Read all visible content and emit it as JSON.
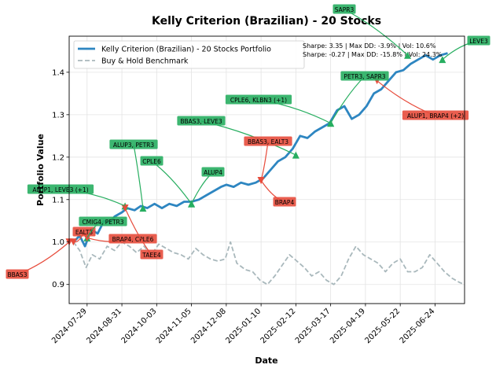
{
  "chart_data": {
    "type": "line",
    "title": "Kelly Criterion (Brazilian) - 20 Stocks",
    "xlabel": "Date",
    "ylabel": "Portfolio Value",
    "xlim": [
      "2024-07-12",
      "2025-07-22"
    ],
    "ylim": [
      0.855,
      1.485
    ],
    "yticks": [
      0.9,
      1.0,
      1.1,
      1.2,
      1.3,
      1.4
    ],
    "ytick_labels": [
      "0.9",
      "1.0",
      "1.1",
      "1.2",
      "1.3",
      "1.4"
    ],
    "xticks": [
      "2024-07-29",
      "2024-08-31",
      "2024-10-03",
      "2024-11-05",
      "2024-12-08",
      "2025-01-10",
      "2025-02-12",
      "2025-03-17",
      "2025-04-19",
      "2025-05-22",
      "2025-06-24"
    ],
    "grid": true,
    "legend_position": "upper left",
    "series": [
      {
        "name": "Kelly Criterion (Brazilian) - 20 Stocks Portfolio",
        "color": "#2e86c1",
        "style": "solid",
        "points": [
          [
            "2024-07-16",
            1.0
          ],
          [
            "2024-07-22",
            1.015
          ],
          [
            "2024-07-27",
            0.99
          ],
          [
            "2024-08-02",
            1.03
          ],
          [
            "2024-08-08",
            1.02
          ],
          [
            "2024-08-14",
            1.05
          ],
          [
            "2024-08-19",
            1.045
          ],
          [
            "2024-08-24",
            1.06
          ],
          [
            "2024-08-31",
            1.07
          ],
          [
            "2024-09-05",
            1.08
          ],
          [
            "2024-09-12",
            1.075
          ],
          [
            "2024-09-18",
            1.085
          ],
          [
            "2024-09-24",
            1.08
          ],
          [
            "2024-10-01",
            1.09
          ],
          [
            "2024-10-08",
            1.08
          ],
          [
            "2024-10-15",
            1.09
          ],
          [
            "2024-10-22",
            1.085
          ],
          [
            "2024-10-29",
            1.095
          ],
          [
            "2024-11-05",
            1.095
          ],
          [
            "2024-11-12",
            1.1
          ],
          [
            "2024-11-19",
            1.11
          ],
          [
            "2024-11-26",
            1.12
          ],
          [
            "2024-12-03",
            1.13
          ],
          [
            "2024-12-08",
            1.135
          ],
          [
            "2024-12-15",
            1.13
          ],
          [
            "2024-12-22",
            1.14
          ],
          [
            "2024-12-29",
            1.135
          ],
          [
            "2025-01-05",
            1.14
          ],
          [
            "2025-01-12",
            1.15
          ],
          [
            "2025-01-19",
            1.17
          ],
          [
            "2025-01-26",
            1.19
          ],
          [
            "2025-02-02",
            1.2
          ],
          [
            "2025-02-09",
            1.22
          ],
          [
            "2025-02-16",
            1.25
          ],
          [
            "2025-02-23",
            1.245
          ],
          [
            "2025-03-02",
            1.26
          ],
          [
            "2025-03-09",
            1.27
          ],
          [
            "2025-03-16",
            1.28
          ],
          [
            "2025-03-23",
            1.31
          ],
          [
            "2025-03-30",
            1.32
          ],
          [
            "2025-04-06",
            1.29
          ],
          [
            "2025-04-13",
            1.3
          ],
          [
            "2025-04-20",
            1.32
          ],
          [
            "2025-04-27",
            1.35
          ],
          [
            "2025-05-04",
            1.36
          ],
          [
            "2025-05-11",
            1.38
          ],
          [
            "2025-05-18",
            1.4
          ],
          [
            "2025-05-25",
            1.405
          ],
          [
            "2025-06-01",
            1.42
          ],
          [
            "2025-06-08",
            1.43
          ],
          [
            "2025-06-15",
            1.44
          ],
          [
            "2025-06-22",
            1.43
          ],
          [
            "2025-06-29",
            1.44
          ],
          [
            "2025-07-06",
            1.445
          ]
        ]
      },
      {
        "name": "Buy & Hold Benchmark",
        "color": "#a9b8bc",
        "style": "dashed",
        "points": [
          [
            "2024-07-16",
            1.0
          ],
          [
            "2024-07-22",
            0.98
          ],
          [
            "2024-07-28",
            0.94
          ],
          [
            "2024-08-03",
            0.97
          ],
          [
            "2024-08-10",
            0.96
          ],
          [
            "2024-08-17",
            0.99
          ],
          [
            "2024-08-24",
            0.98
          ],
          [
            "2024-08-31",
            1.0
          ],
          [
            "2024-09-07",
            0.99
          ],
          [
            "2024-09-14",
            0.975
          ],
          [
            "2024-09-21",
            0.99
          ],
          [
            "2024-09-28",
            0.97
          ],
          [
            "2024-10-05",
            0.995
          ],
          [
            "2024-10-12",
            0.985
          ],
          [
            "2024-10-19",
            0.975
          ],
          [
            "2024-10-26",
            0.97
          ],
          [
            "2024-11-02",
            0.96
          ],
          [
            "2024-11-09",
            0.985
          ],
          [
            "2024-11-16",
            0.97
          ],
          [
            "2024-11-23",
            0.96
          ],
          [
            "2024-11-30",
            0.955
          ],
          [
            "2024-12-07",
            0.96
          ],
          [
            "2024-12-12",
            1.0
          ],
          [
            "2024-12-18",
            0.95
          ],
          [
            "2024-12-26",
            0.935
          ],
          [
            "2025-01-02",
            0.93
          ],
          [
            "2025-01-09",
            0.91
          ],
          [
            "2025-01-16",
            0.9
          ],
          [
            "2025-01-23",
            0.92
          ],
          [
            "2025-01-30",
            0.945
          ],
          [
            "2025-02-06",
            0.97
          ],
          [
            "2025-02-13",
            0.955
          ],
          [
            "2025-02-20",
            0.94
          ],
          [
            "2025-02-27",
            0.92
          ],
          [
            "2025-03-06",
            0.93
          ],
          [
            "2025-03-13",
            0.91
          ],
          [
            "2025-03-20",
            0.9
          ],
          [
            "2025-03-27",
            0.92
          ],
          [
            "2025-04-03",
            0.96
          ],
          [
            "2025-04-10",
            0.99
          ],
          [
            "2025-04-17",
            0.97
          ],
          [
            "2025-04-24",
            0.96
          ],
          [
            "2025-05-01",
            0.95
          ],
          [
            "2025-05-08",
            0.93
          ],
          [
            "2025-05-15",
            0.95
          ],
          [
            "2025-05-22",
            0.96
          ],
          [
            "2025-05-29",
            0.93
          ],
          [
            "2025-06-05",
            0.93
          ],
          [
            "2025-06-12",
            0.94
          ],
          [
            "2025-06-19",
            0.97
          ],
          [
            "2025-06-26",
            0.95
          ],
          [
            "2025-07-03",
            0.93
          ],
          [
            "2025-07-10",
            0.915
          ],
          [
            "2025-07-17",
            0.905
          ],
          [
            "2025-07-22",
            0.9
          ]
        ]
      }
    ],
    "stats_text": {
      "line1": "Sharpe: 3.35 | Max DD: -3.9% | Vol: 10.6%",
      "line2": "Sharpe: -0.27 | Max DD: -15.8% | Vol: 24.3%"
    },
    "annotations": [
      {
        "label": "BBAS3",
        "kind": "sell",
        "date": "2024-07-12",
        "value": 1.0
      },
      {
        "label": "EALT3",
        "kind": "sell",
        "date": "2024-07-16",
        "value": 1.0
      },
      {
        "label": "ALUP1, LEVE3 (+1)",
        "kind": "buy",
        "date": "2024-09-03",
        "value": 1.085
      },
      {
        "label": "CMIG4, PETR3",
        "kind": "buy",
        "date": "2024-07-29",
        "value": 1.01
      },
      {
        "label": "BRAP4, CPLE6",
        "kind": "sell",
        "date": "2024-07-29",
        "value": 1.01
      },
      {
        "label": "TAEE4",
        "kind": "sell",
        "date": "2024-09-03",
        "value": 1.08
      },
      {
        "label": "ALUP3, PETR3",
        "kind": "buy",
        "date": "2024-09-20",
        "value": 1.08
      },
      {
        "label": "CPLE6",
        "kind": "buy",
        "date": "2024-11-05",
        "value": 1.09
      },
      {
        "label": "ALUP4",
        "kind": "buy",
        "date": "2024-11-05",
        "value": 1.09
      },
      {
        "label": "BBAS3, LEVE3",
        "kind": "buy",
        "date": "2025-02-12",
        "value": 1.205
      },
      {
        "label": "BBAS3, EALT3",
        "kind": "sell",
        "date": "2025-01-10",
        "value": 1.145
      },
      {
        "label": "BRAP4",
        "kind": "sell",
        "date": "2025-01-10",
        "value": 1.145
      },
      {
        "label": "CPLE6, KLBN3 (+1)",
        "kind": "buy",
        "date": "2025-03-17",
        "value": 1.28
      },
      {
        "label": "PETR3, SAPR3",
        "kind": "buy",
        "date": "2025-03-17",
        "value": 1.28
      },
      {
        "label": "ALUP1, BRAP4 (+2)",
        "kind": "sell",
        "date": "2025-04-30",
        "value": 1.38
      },
      {
        "label": "SAPR3",
        "kind": "buy",
        "date": "2025-05-29",
        "value": 1.44
      },
      {
        "label": "LEVE3",
        "kind": "buy",
        "date": "2025-07-01",
        "value": 1.43
      }
    ]
  }
}
